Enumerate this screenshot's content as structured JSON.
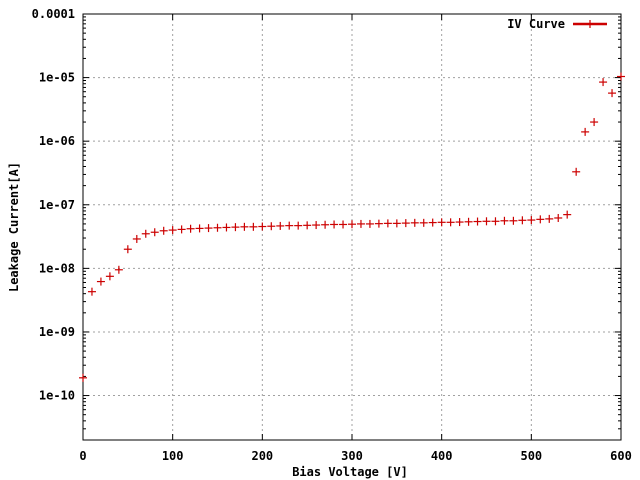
{
  "chart_data": {
    "type": "scatter",
    "title": "",
    "xlabel": "Bias Voltage [V]",
    "ylabel": "Leakage Current[A]",
    "xlim": [
      0,
      600
    ],
    "ylim": [
      2e-11,
      0.0001
    ],
    "y_scale": "log",
    "grid": true,
    "legend_position": "top-right",
    "x_ticks": [
      {
        "value": 0,
        "label": "0"
      },
      {
        "value": 100,
        "label": "100"
      },
      {
        "value": 200,
        "label": "200"
      },
      {
        "value": 300,
        "label": "300"
      },
      {
        "value": 400,
        "label": "400"
      },
      {
        "value": 500,
        "label": "500"
      },
      {
        "value": 600,
        "label": "600"
      }
    ],
    "y_ticks": [
      {
        "value": 1e-10,
        "label": "1e-10"
      },
      {
        "value": 1e-09,
        "label": "1e-09"
      },
      {
        "value": 1e-08,
        "label": "1e-08"
      },
      {
        "value": 1e-07,
        "label": "1e-07"
      },
      {
        "value": 1e-06,
        "label": "1e-06"
      },
      {
        "value": 1e-05,
        "label": "1e-05"
      },
      {
        "value": 0.0001,
        "label": "0.0001"
      }
    ],
    "series": [
      {
        "name": "IV Curve",
        "color": "#cc0000",
        "marker": "plus",
        "x": [
          0,
          10,
          20,
          30,
          40,
          50,
          60,
          70,
          80,
          90,
          100,
          110,
          120,
          130,
          140,
          150,
          160,
          170,
          180,
          190,
          200,
          210,
          220,
          230,
          240,
          250,
          260,
          270,
          280,
          290,
          300,
          310,
          320,
          330,
          340,
          350,
          360,
          370,
          380,
          390,
          400,
          410,
          420,
          430,
          440,
          450,
          460,
          470,
          480,
          490,
          500,
          510,
          520,
          530,
          540,
          550,
          560,
          570,
          580,
          590,
          600
        ],
        "y": [
          1.9e-10,
          4.3e-09,
          6.2e-09,
          7.5e-09,
          9.5e-09,
          2e-08,
          2.9e-08,
          3.5e-08,
          3.7e-08,
          3.9e-08,
          4e-08,
          4.1e-08,
          4.2e-08,
          4.25e-08,
          4.3e-08,
          4.35e-08,
          4.4e-08,
          4.45e-08,
          4.5e-08,
          4.5e-08,
          4.55e-08,
          4.6e-08,
          4.65e-08,
          4.7e-08,
          4.7e-08,
          4.75e-08,
          4.8e-08,
          4.85e-08,
          4.9e-08,
          4.9e-08,
          4.95e-08,
          5e-08,
          5e-08,
          5.05e-08,
          5.1e-08,
          5.1e-08,
          5.15e-08,
          5.2e-08,
          5.2e-08,
          5.25e-08,
          5.3e-08,
          5.3e-08,
          5.35e-08,
          5.4e-08,
          5.45e-08,
          5.5e-08,
          5.5e-08,
          5.6e-08,
          5.6e-08,
          5.7e-08,
          5.75e-08,
          5.9e-08,
          6e-08,
          6.2e-08,
          7e-08,
          3.3e-07,
          1.4e-06,
          2e-06,
          8.5e-06,
          5.7e-06,
          1.04e-05
        ]
      }
    ]
  }
}
